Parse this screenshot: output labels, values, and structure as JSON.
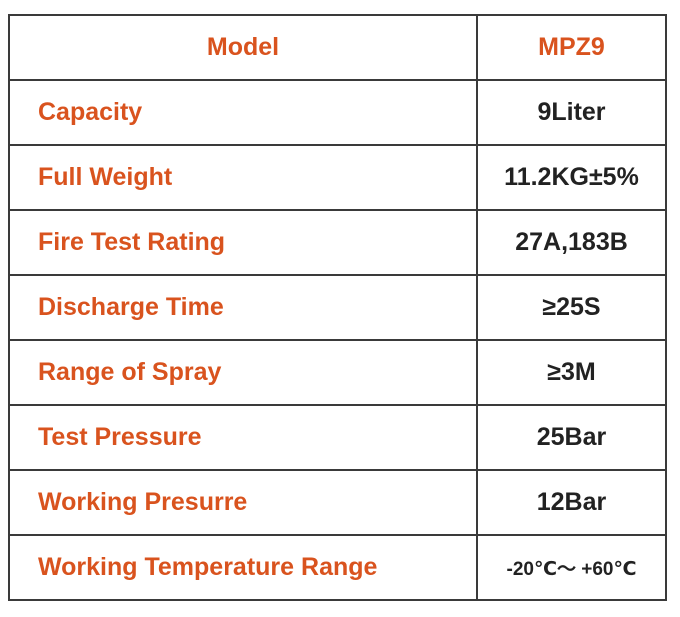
{
  "colors": {
    "label_text": "#d9531e",
    "value_text": "#222222",
    "border": "#3a3a3a"
  },
  "header": {
    "label": "Model",
    "value": "MPZ9"
  },
  "rows": [
    {
      "label": "Capacity",
      "value": "9Liter"
    },
    {
      "label": "Full Weight",
      "value": "11.2KG±5%"
    },
    {
      "label": "Fire Test Rating",
      "value": "27A,183B"
    },
    {
      "label": "Discharge Time",
      "value": "≥25S"
    },
    {
      "label": "Range of Spray",
      "value": "≥3M"
    },
    {
      "label": "Test Pressure",
      "value": "25Bar"
    },
    {
      "label": "Working Presurre",
      "value": "12Bar"
    },
    {
      "label": "Working Temperature Range",
      "value": "-20℃～ +60℃"
    }
  ]
}
